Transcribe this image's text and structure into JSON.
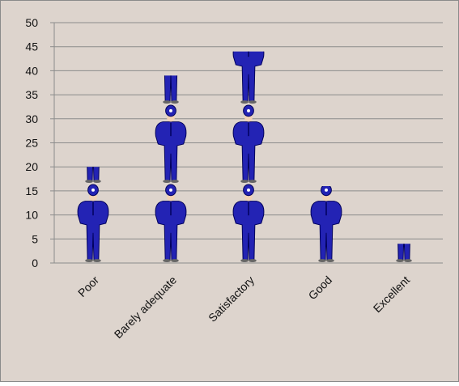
{
  "chart_data": {
    "type": "pictograph",
    "categories": [
      "Poor",
      "Barely adequate",
      "Satisfactory",
      "Good",
      "Excellent"
    ],
    "values": [
      20,
      39,
      44,
      16,
      4
    ],
    "color": "#2323b4",
    "ylim": [
      0,
      50
    ],
    "yticks": [
      0,
      5,
      10,
      15,
      20,
      25,
      30,
      35,
      40,
      45,
      50
    ],
    "grid": true
  }
}
